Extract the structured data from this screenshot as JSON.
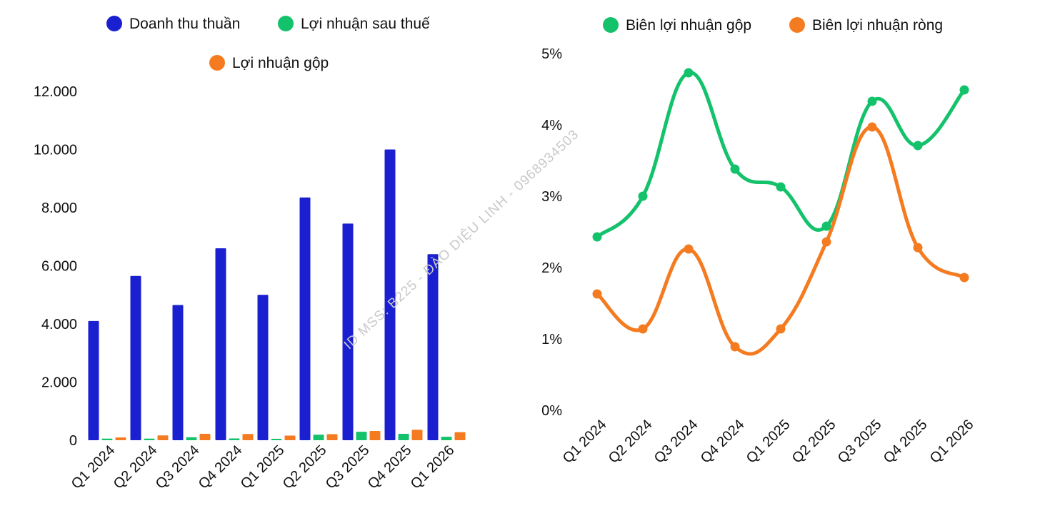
{
  "watermark": "ID MSS: B225 - ĐÀO DIỆU LINH - 0968934503",
  "chart_data": [
    {
      "type": "bar",
      "categories": [
        "Q1 2024",
        "Q2 2024",
        "Q3 2024",
        "Q4 2024",
        "Q1 2025",
        "Q2 2025",
        "Q3 2025",
        "Q4 2025",
        "Q1 2026"
      ],
      "series": [
        {
          "name": "Doanh thu thuần",
          "color": "#1a1fd0",
          "values": [
            4100,
            5650,
            4650,
            6600,
            5000,
            8350,
            7450,
            10000,
            6400
          ]
        },
        {
          "name": "Lợi nhuận sau thuế",
          "color": "#13c26b",
          "values": [
            55,
            55,
            100,
            60,
            50,
            190,
            290,
            220,
            120
          ]
        },
        {
          "name": "Lợi nhuận gộp",
          "color": "#f47b20",
          "values": [
            95,
            165,
            220,
            215,
            160,
            210,
            320,
            360,
            275
          ]
        }
      ],
      "yticks": [
        "12.000",
        "10.000",
        "8.000",
        "6.000",
        "4.000",
        "2.000",
        "0"
      ],
      "ylim": [
        0,
        12000
      ],
      "legend_position": "top"
    },
    {
      "type": "line",
      "categories": [
        "Q1 2024",
        "Q2 2024",
        "Q3 2024",
        "Q4 2024",
        "Q1 2025",
        "Q2 2025",
        "Q3 2025",
        "Q4 2025",
        "Q1 2026"
      ],
      "series": [
        {
          "name": "Biên lợi nhuận gộp",
          "color": "#13c26b",
          "values": [
            2.43,
            3.0,
            4.73,
            3.38,
            3.13,
            2.58,
            4.33,
            3.71,
            4.49
          ]
        },
        {
          "name": "Biên lợi nhuận ròng",
          "color": "#f47b20",
          "values": [
            1.63,
            1.14,
            2.26,
            0.89,
            1.14,
            2.36,
            3.97,
            2.28,
            1.86
          ]
        }
      ],
      "yticks": [
        "5%",
        "4%",
        "3%",
        "2%",
        "1%",
        "0%"
      ],
      "ylim": [
        0,
        5
      ],
      "legend_position": "top"
    }
  ]
}
